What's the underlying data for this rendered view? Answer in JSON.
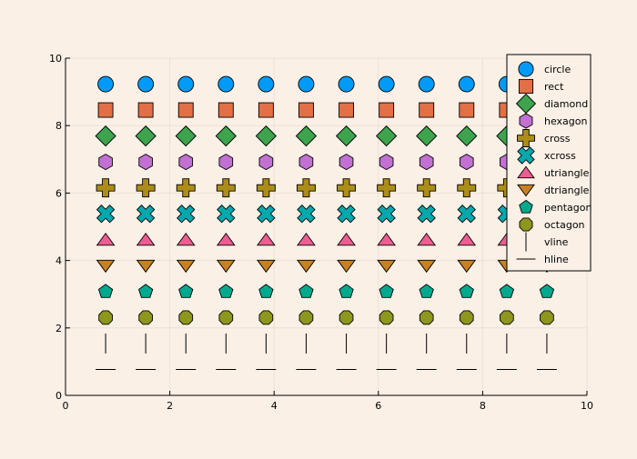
{
  "chart_data": {
    "type": "scatter",
    "title": "",
    "xlabel": "",
    "ylabel": "",
    "xlim": [
      0,
      10
    ],
    "ylim": [
      0,
      10
    ],
    "xticks": [
      0,
      2,
      4,
      6,
      8,
      10
    ],
    "yticks": [
      0,
      2,
      4,
      6,
      8,
      10
    ],
    "xtick_labels": [
      "0",
      "2",
      "4",
      "6",
      "8",
      "10"
    ],
    "ytick_labels": [
      "0",
      "2",
      "4",
      "6",
      "8",
      "10"
    ],
    "grid": true,
    "legend_position": "top-right",
    "background_color": "#faf0e6",
    "x": [
      0.769,
      1.538,
      2.308,
      3.077,
      3.846,
      4.615,
      5.385,
      6.154,
      6.923,
      7.692,
      8.462,
      9.231
    ],
    "series": [
      {
        "name": "circle",
        "marker": "circle",
        "color": "#009af9",
        "y": 9.231
      },
      {
        "name": "rect",
        "marker": "rect",
        "color": "#e26f46",
        "y": 8.462
      },
      {
        "name": "diamond",
        "marker": "diamond",
        "color": "#3da44d",
        "y": 7.692
      },
      {
        "name": "hexagon",
        "marker": "hexagon",
        "color": "#c271d2",
        "y": 6.923
      },
      {
        "name": "cross",
        "marker": "cross",
        "color": "#ac8d18",
        "y": 6.154
      },
      {
        "name": "xcross",
        "marker": "xcross",
        "color": "#00a9ad",
        "y": 5.385
      },
      {
        "name": "utriangle",
        "marker": "utriangle",
        "color": "#ed5d92",
        "y": 4.615
      },
      {
        "name": "dtriangle",
        "marker": "dtriangle",
        "color": "#c68125",
        "y": 3.846
      },
      {
        "name": "pentagon",
        "marker": "pentagon",
        "color": "#00a98d",
        "y": 3.077
      },
      {
        "name": "octagon",
        "marker": "octagon",
        "color": "#8e971d",
        "y": 2.308
      },
      {
        "name": "vline",
        "marker": "vline",
        "color": "#000000",
        "y": 1.538
      },
      {
        "name": "hline",
        "marker": "hline",
        "color": "#000000",
        "y": 0.769
      }
    ]
  }
}
